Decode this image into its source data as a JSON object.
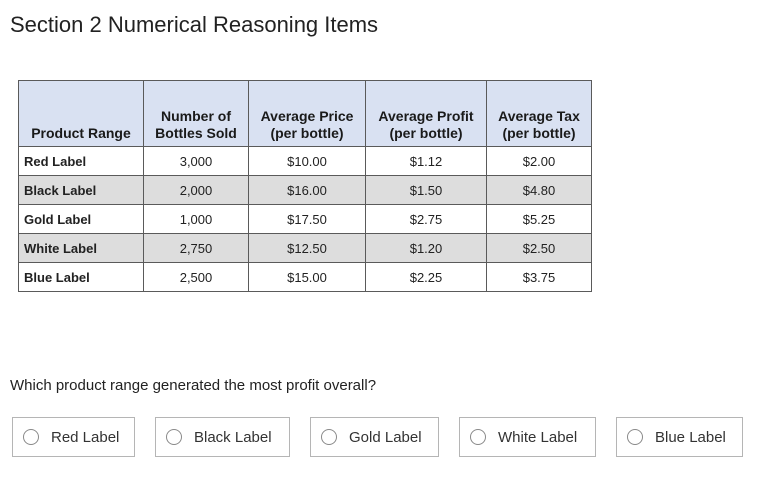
{
  "title": "Section 2 Numerical Reasoning Items",
  "table": {
    "headers": [
      "Product Range",
      "Number of Bottles Sold",
      "Average Price (per bottle)",
      "Average Profit (per bottle)",
      "Average Tax (per bottle)"
    ],
    "header_lines": [
      [
        "",
        "Product Range"
      ],
      [
        "Number of",
        "Bottles Sold"
      ],
      [
        "Average Price",
        "(per bottle)"
      ],
      [
        "Average Profit",
        "(per bottle)"
      ],
      [
        "Average Tax",
        "(per bottle)"
      ]
    ],
    "rows": [
      [
        "Red Label",
        "3,000",
        "$10.00",
        "$1.12",
        "$2.00"
      ],
      [
        "Black Label",
        "2,000",
        "$16.00",
        "$1.50",
        "$4.80"
      ],
      [
        "Gold Label",
        "1,000",
        "$17.50",
        "$2.75",
        "$5.25"
      ],
      [
        "White Label",
        "2,750",
        "$12.50",
        "$1.20",
        "$2.50"
      ],
      [
        "Blue Label",
        "2,500",
        "$15.00",
        "$2.25",
        "$3.75"
      ]
    ]
  },
  "question": "Which product range generated the most profit overall?",
  "options": [
    "Red Label",
    "Black Label",
    "Gold Label",
    "White Label",
    "Blue Label"
  ],
  "colors": {
    "header_bg": "#d9e1f2",
    "shaded_row_bg": "#dddddd",
    "border": "#5a5a5a",
    "option_border": "#b5b5b5"
  }
}
